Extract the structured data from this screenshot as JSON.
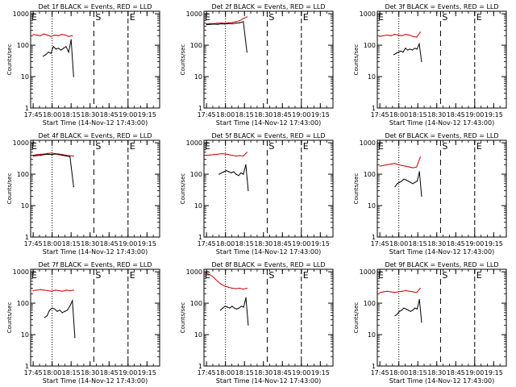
{
  "figure": {
    "xlabel": "Start Time (14-Nov-12 17:43:00)",
    "ylabel": "Counts/sec",
    "xticks": [
      "17:45",
      "18:00",
      "18:15",
      "18:30",
      "18:45",
      "19:00",
      "19:15"
    ],
    "yticks": [
      "1",
      "10",
      "100",
      "1000"
    ]
  },
  "chart_data": [
    {
      "type": "line",
      "title": "Det 1f BLACK = Events, RED = LLD",
      "markers": [
        "S",
        "E"
      ],
      "xlim": [
        "17:43",
        "19:25"
      ],
      "ylim": [
        1,
        1200
      ],
      "yscale": "log",
      "series": [
        {
          "name": "BLACK",
          "color": "#000000",
          "x_start": "17:53",
          "x_end": "18:17",
          "values": [
            45,
            50,
            60,
            55,
            90,
            75,
            80,
            70,
            80,
            90,
            60,
            150,
            10
          ]
        },
        {
          "name": "RED",
          "color": "#cc0000",
          "x_start": "17:45",
          "x_end": "18:16",
          "values": [
            220,
            210,
            200,
            230,
            210,
            190,
            210,
            200,
            220,
            210,
            190,
            200
          ]
        }
      ]
    },
    {
      "type": "line",
      "title": "Det 2f BLACK = Events, RED = LLD",
      "markers": [
        "S",
        "E"
      ],
      "xlim": [
        "17:43",
        "19:25"
      ],
      "ylim": [
        1,
        1200
      ],
      "yscale": "log",
      "series": [
        {
          "name": "BLACK",
          "color": "#000000",
          "x_start": "17:45",
          "x_end": "18:17",
          "values": [
            450,
            460,
            470,
            460,
            480,
            470,
            490,
            480,
            500,
            520,
            560,
            60
          ]
        },
        {
          "name": "RED",
          "color": "#cc0000",
          "x_start": "17:45",
          "x_end": "18:17",
          "values": [
            480,
            490,
            490,
            500,
            510,
            500,
            520,
            530,
            560,
            600,
            700,
            800
          ]
        }
      ]
    },
    {
      "type": "line",
      "title": "Det 3f BLACK = Events, RED = LLD",
      "markers": [
        "S",
        "E"
      ],
      "xlim": [
        "17:43",
        "19:25"
      ],
      "ylim": [
        1,
        1200
      ],
      "yscale": "log",
      "series": [
        {
          "name": "BLACK",
          "color": "#000000",
          "x_start": "17:56",
          "x_end": "18:18",
          "values": [
            50,
            55,
            60,
            65,
            60,
            80,
            70,
            75,
            70,
            80,
            75,
            110,
            30
          ]
        },
        {
          "name": "RED",
          "color": "#cc0000",
          "x_start": "17:45",
          "x_end": "18:17",
          "values": [
            190,
            200,
            210,
            200,
            220,
            210,
            200,
            220,
            210,
            190,
            180,
            260
          ]
        }
      ]
    },
    {
      "type": "line",
      "title": "Det 4f BLACK = Events, RED = LLD",
      "markers": [
        "S",
        "E"
      ],
      "xlim": [
        "17:43",
        "19:25"
      ],
      "ylim": [
        1,
        1200
      ],
      "yscale": "log",
      "series": [
        {
          "name": "BLACK",
          "color": "#000000",
          "x_start": "17:45",
          "x_end": "18:17",
          "values": [
            380,
            390,
            400,
            420,
            430,
            420,
            440,
            420,
            400,
            380,
            360,
            40
          ]
        },
        {
          "name": "RED",
          "color": "#cc0000",
          "x_start": "17:45",
          "x_end": "18:17",
          "values": [
            400,
            420,
            430,
            440,
            460,
            470,
            450,
            440,
            420,
            400,
            390,
            380
          ]
        }
      ]
    },
    {
      "type": "line",
      "title": "Det 5f BLACK = Events, RED = LLD",
      "markers": [
        "S",
        "E"
      ],
      "xlim": [
        "17:43",
        "19:25"
      ],
      "ylim": [
        1,
        1200
      ],
      "yscale": "log",
      "series": [
        {
          "name": "BLACK",
          "color": "#000000",
          "x_start": "17:55",
          "x_end": "18:18",
          "values": [
            100,
            110,
            120,
            130,
            120,
            110,
            120,
            100,
            90,
            110,
            100,
            200,
            30
          ]
        },
        {
          "name": "RED",
          "color": "#cc0000",
          "x_start": "17:45",
          "x_end": "18:17",
          "values": [
            400,
            410,
            420,
            430,
            450,
            440,
            420,
            400,
            380,
            390,
            380,
            500
          ]
        }
      ]
    },
    {
      "type": "line",
      "title": "Det 6f BLACK = Events, RED = LLD",
      "markers": [
        "S",
        "E"
      ],
      "xlim": [
        "17:43",
        "19:25"
      ],
      "ylim": [
        1,
        1200
      ],
      "yscale": "log",
      "series": [
        {
          "name": "BLACK",
          "color": "#000000",
          "x_start": "17:57",
          "x_end": "18:18",
          "values": [
            40,
            50,
            55,
            60,
            70,
            65,
            60,
            55,
            50,
            55,
            60,
            120,
            20
          ]
        },
        {
          "name": "RED",
          "color": "#cc0000",
          "x_start": "17:45",
          "x_end": "18:17",
          "values": [
            180,
            190,
            200,
            210,
            220,
            200,
            190,
            180,
            170,
            160,
            170,
            350
          ]
        }
      ]
    },
    {
      "type": "line",
      "title": "Det 7f BLACK = Events, RED = LLD",
      "markers": [
        "S",
        "E"
      ],
      "xlim": [
        "17:43",
        "19:25"
      ],
      "ylim": [
        1,
        1200
      ],
      "yscale": "log",
      "series": [
        {
          "name": "BLACK",
          "color": "#000000",
          "x_start": "17:54",
          "x_end": "18:18",
          "values": [
            35,
            40,
            60,
            70,
            65,
            55,
            60,
            50,
            55,
            60,
            80,
            120,
            8
          ]
        },
        {
          "name": "RED",
          "color": "#cc0000",
          "x_start": "17:45",
          "x_end": "18:17",
          "values": [
            250,
            260,
            270,
            260,
            250,
            240,
            260,
            250,
            240,
            260,
            250,
            260
          ]
        }
      ]
    },
    {
      "type": "line",
      "title": "Det 8f BLACK = Events, RED = LLD",
      "markers": [
        "S",
        "E"
      ],
      "xlim": [
        "17:43",
        "19:25"
      ],
      "ylim": [
        1,
        1200
      ],
      "yscale": "log",
      "series": [
        {
          "name": "BLACK",
          "color": "#000000",
          "x_start": "17:56",
          "x_end": "18:18",
          "values": [
            60,
            70,
            80,
            75,
            70,
            80,
            70,
            65,
            70,
            80,
            75,
            150,
            20
          ]
        },
        {
          "name": "RED",
          "color": "#cc0000",
          "x_start": "17:45",
          "x_end": "18:17",
          "values": [
            900,
            800,
            650,
            500,
            400,
            350,
            320,
            300,
            290,
            300,
            280,
            300
          ]
        }
      ]
    },
    {
      "type": "line",
      "title": "Det 9f BLACK = Events, RED = LLD",
      "markers": [
        "S",
        "E"
      ],
      "xlim": [
        "17:43",
        "19:25"
      ],
      "ylim": [
        1,
        1200
      ],
      "yscale": "log",
      "series": [
        {
          "name": "BLACK",
          "color": "#000000",
          "x_start": "17:57",
          "x_end": "18:18",
          "values": [
            40,
            45,
            55,
            60,
            70,
            65,
            60,
            55,
            60,
            70,
            65,
            130,
            25
          ]
        },
        {
          "name": "RED",
          "color": "#cc0000",
          "x_start": "17:45",
          "x_end": "18:17",
          "values": [
            220,
            230,
            240,
            230,
            220,
            230,
            240,
            250,
            240,
            230,
            220,
            300
          ]
        }
      ]
    }
  ]
}
